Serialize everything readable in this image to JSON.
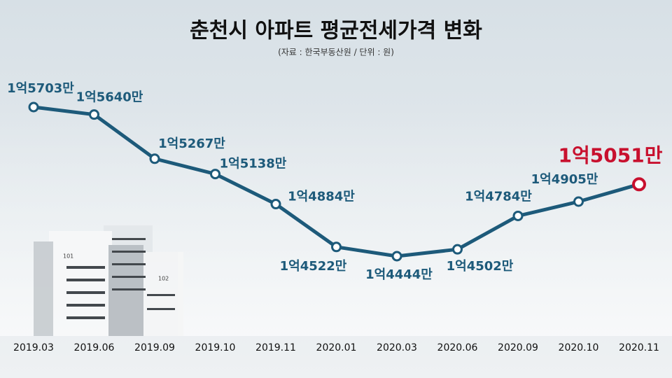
{
  "chart_data": {
    "type": "line",
    "title": "춘천시 아파트 평균전세가격 변화",
    "subtitle": "(자료 : 한국부동산원 / 단위 : 원)",
    "categories": [
      "2019.03",
      "2019.06",
      "2019.09",
      "2019.10",
      "2019.11",
      "2020.01",
      "2020.03",
      "2020.06",
      "2020.09",
      "2020.10",
      "2020.11"
    ],
    "values": [
      157030000,
      156400000,
      152670000,
      151380000,
      148840000,
      145220000,
      144440000,
      145020000,
      147840000,
      149050000,
      150510000
    ],
    "value_labels": [
      "1억5703만",
      "1억5640만",
      "1억5267만",
      "1억5138만",
      "1억4884만",
      "1억4522만",
      "1억4444만",
      "1억4502만",
      "1억4784만",
      "1억4905만",
      "1억5051만"
    ],
    "color": "#1d5a7a",
    "highlight_color": "#c8102e"
  },
  "illustration": {
    "building_labels": [
      "101",
      "102"
    ]
  }
}
